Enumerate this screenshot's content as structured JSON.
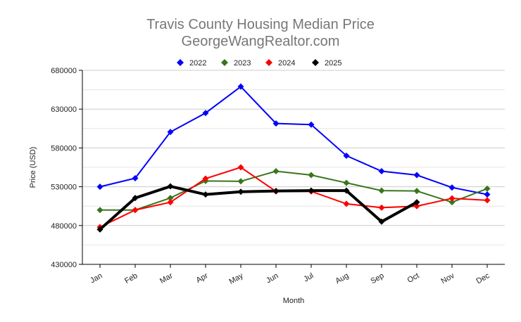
{
  "chart_data": {
    "type": "line",
    "title": "Travis County Housing Median Price",
    "subtitle": "GeorgeWangRealtor.com",
    "xlabel": "Month",
    "ylabel": "Price (USD)",
    "ylim": [
      430000,
      680000
    ],
    "yticks": [
      430000,
      480000,
      530000,
      580000,
      630000,
      680000
    ],
    "grid": true,
    "legend_placement": "top",
    "categories": [
      "Jan",
      "Feb",
      "Mar",
      "Apr",
      "May",
      "Jun",
      "Jul",
      "Aug",
      "Sep",
      "Oct",
      "Nov",
      "Dec"
    ],
    "series": [
      {
        "name": "2022",
        "color": "#0000ff",
        "values": [
          530000,
          541000,
          600500,
          625000,
          659000,
          611500,
          610000,
          570000,
          550000,
          545000,
          529000,
          520000
        ]
      },
      {
        "name": "2023",
        "color": "#38761d",
        "values": [
          500000,
          500000,
          515500,
          537500,
          537000,
          550000,
          545000,
          535000,
          525000,
          524500,
          510000,
          527500
        ]
      },
      {
        "name": "2024",
        "color": "#ff0000",
        "values": [
          478000,
          500000,
          510000,
          540500,
          555000,
          524000,
          524000,
          508000,
          503000,
          505000,
          515000,
          512500
        ]
      },
      {
        "name": "2025",
        "color": "#000000",
        "values": [
          475000,
          515500,
          530500,
          520000,
          523500,
          524500,
          525000,
          525000,
          485000,
          510000,
          null,
          null
        ]
      }
    ]
  }
}
